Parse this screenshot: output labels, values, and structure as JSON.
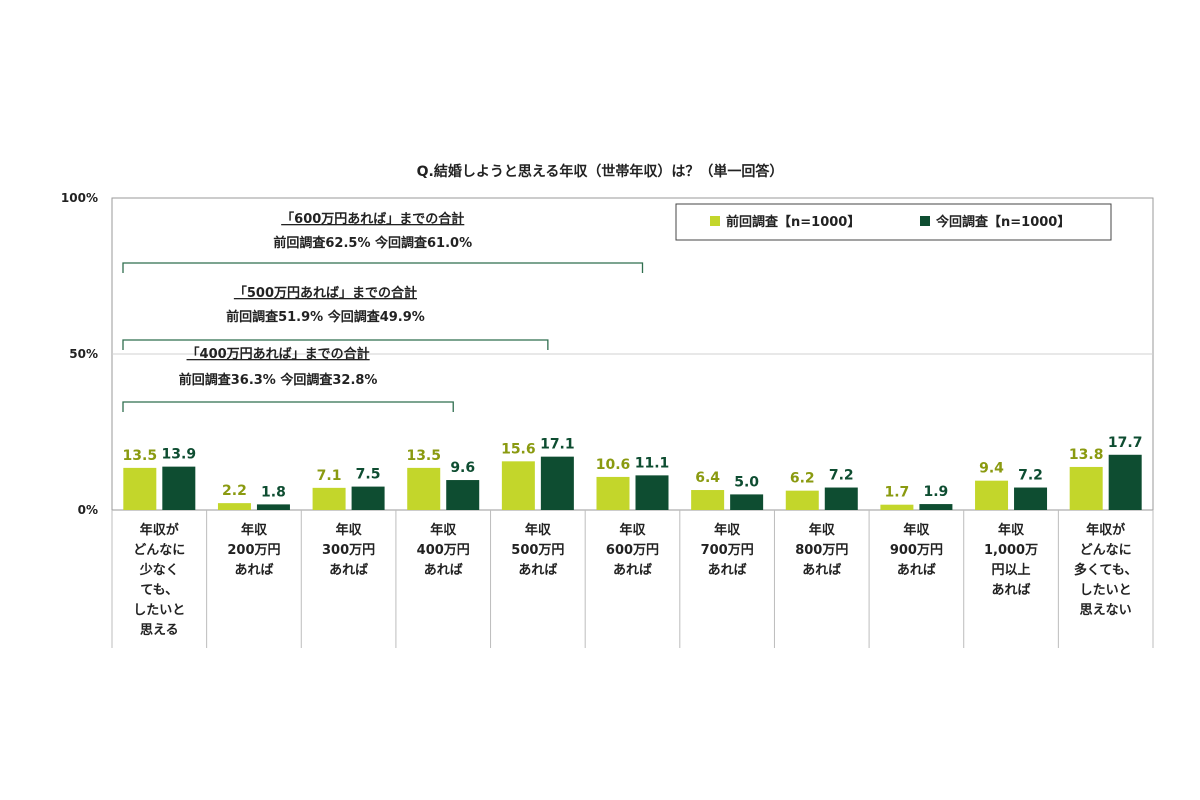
{
  "chart_data": {
    "type": "bar",
    "title": "Q.結婚しようと思える年収（世帯年収）は？（単一回答）",
    "categories": [
      "年収が\nどんなに\n少なく\nても、\nしたいと\n思える",
      "年収\n200万円\nあれば",
      "年収\n300万円\nあれば",
      "年収\n400万円\nあれば",
      "年収\n500万円\nあれば",
      "年収\n600万円\nあれば",
      "年収\n700万円\nあれば",
      "年収\n800万円\nあれば",
      "年収\n900万円\nあれば",
      "年収\n1,000万\n円以上\nあれば",
      "年収が\nどんなに\n多くても、\nしたいと\n思えない"
    ],
    "series": [
      {
        "name": "前回調査【n=1000】",
        "color": "#c3d62b",
        "values": [
          13.5,
          2.2,
          7.1,
          13.5,
          15.6,
          10.6,
          6.4,
          6.2,
          1.7,
          9.4,
          13.8
        ],
        "labels": [
          "13.5",
          "2.2",
          "7.1",
          "13.5",
          "15.6",
          "10.6",
          "6.4",
          "6.2",
          "1.7",
          "9.4",
          "13.8"
        ]
      },
      {
        "name": "今回調査【n=1000】",
        "color": "#0e4d31",
        "values": [
          13.9,
          1.8,
          7.5,
          9.6,
          17.1,
          11.1,
          5.0,
          7.2,
          1.9,
          7.2,
          17.7
        ],
        "labels": [
          "13.9",
          "1.8",
          "7.5",
          "9.6",
          "17.1",
          "11.1",
          "5.0",
          "7.2",
          "1.9",
          "7.2",
          "17.7"
        ]
      }
    ],
    "ylim": [
      0,
      100
    ],
    "yticks": [
      "0%",
      "50%",
      "100%"
    ],
    "grid": true,
    "legend": "top-right",
    "annotations": [
      {
        "heading": "「600万円あれば」までの合計",
        "detail": "前回調査62.5%  今回調査61.0%",
        "span": [
          0,
          5
        ]
      },
      {
        "heading": "「500万円あれば」までの合計",
        "detail": "前回調査51.9%  今回調査49.9%",
        "span": [
          0,
          4
        ]
      },
      {
        "heading": "「400万円あれば」までの合計",
        "detail": "前回調査36.3%  今回調査32.8%",
        "span": [
          0,
          3
        ]
      }
    ]
  }
}
